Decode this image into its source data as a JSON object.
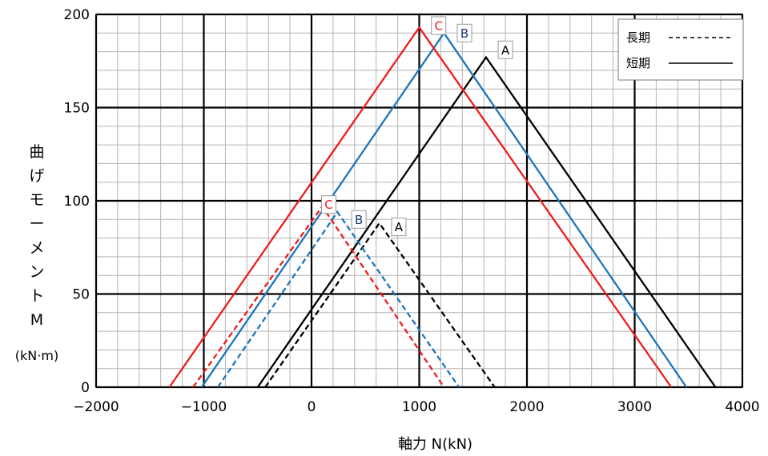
{
  "chart_data": {
    "type": "line",
    "xlabel": "軸力 N(kN)",
    "ylabel_chars": [
      "曲",
      "げ",
      "モ",
      "ー",
      "メ",
      "ン",
      "ト",
      "M"
    ],
    "ylabel_unit": "(kN·m)",
    "xlim": [
      -2000,
      4000
    ],
    "ylim": [
      0,
      200
    ],
    "x_ticks": [
      -2000,
      -1000,
      0,
      1000,
      2000,
      3000,
      4000
    ],
    "x_tick_labels": [
      "−2000",
      "−1000",
      "0",
      "1000",
      "2000",
      "3000",
      "4000"
    ],
    "y_ticks": [
      0,
      50,
      100,
      150,
      200
    ],
    "y_tick_labels": [
      "0",
      "50",
      "100",
      "150",
      "200"
    ],
    "minor_x_step": 200,
    "minor_y_step": 10,
    "grid": true,
    "legend": {
      "placement": "top-right",
      "entries": [
        {
          "label": "長期",
          "style": "dashed"
        },
        {
          "label": "短期",
          "style": "solid"
        }
      ]
    },
    "series": [
      {
        "name": "A",
        "kind": "短期",
        "dash": false,
        "color": "#000000",
        "points": [
          [
            -500,
            0
          ],
          [
            1620,
            177
          ],
          [
            3750,
            0
          ]
        ]
      },
      {
        "name": "B",
        "kind": "短期",
        "dash": false,
        "color": "#1a75bc",
        "points": [
          [
            -1020,
            0
          ],
          [
            1230,
            190
          ],
          [
            3480,
            0
          ]
        ]
      },
      {
        "name": "C",
        "kind": "短期",
        "dash": false,
        "color": "#ee1c1c",
        "points": [
          [
            -1320,
            0
          ],
          [
            1000,
            193
          ],
          [
            3340,
            0
          ]
        ]
      },
      {
        "name": "A",
        "kind": "長期",
        "dash": true,
        "color": "#000000",
        "points": [
          [
            -430,
            0
          ],
          [
            630,
            88
          ],
          [
            1700,
            0
          ]
        ]
      },
      {
        "name": "B",
        "kind": "長期",
        "dash": true,
        "color": "#1a75bc",
        "points": [
          [
            -870,
            0
          ],
          [
            240,
            94
          ],
          [
            1370,
            0
          ]
        ]
      },
      {
        "name": "C",
        "kind": "長期",
        "dash": true,
        "color": "#ee1c1c",
        "points": [
          [
            -1100,
            0
          ],
          [
            100,
            97
          ],
          [
            1230,
            0
          ]
        ]
      }
    ],
    "annotations": [
      {
        "text": "A",
        "x": 1800,
        "y": 181,
        "color": "#000000"
      },
      {
        "text": "B",
        "x": 1420,
        "y": 190,
        "color": "#1a3a7a"
      },
      {
        "text": "C",
        "x": 1180,
        "y": 194,
        "color": "#ee1c1c"
      },
      {
        "text": "A",
        "x": 810,
        "y": 86,
        "color": "#000000"
      },
      {
        "text": "B",
        "x": 440,
        "y": 90,
        "color": "#1a3a7a"
      },
      {
        "text": "C",
        "x": 160,
        "y": 98,
        "color": "#ee1c1c"
      }
    ]
  }
}
